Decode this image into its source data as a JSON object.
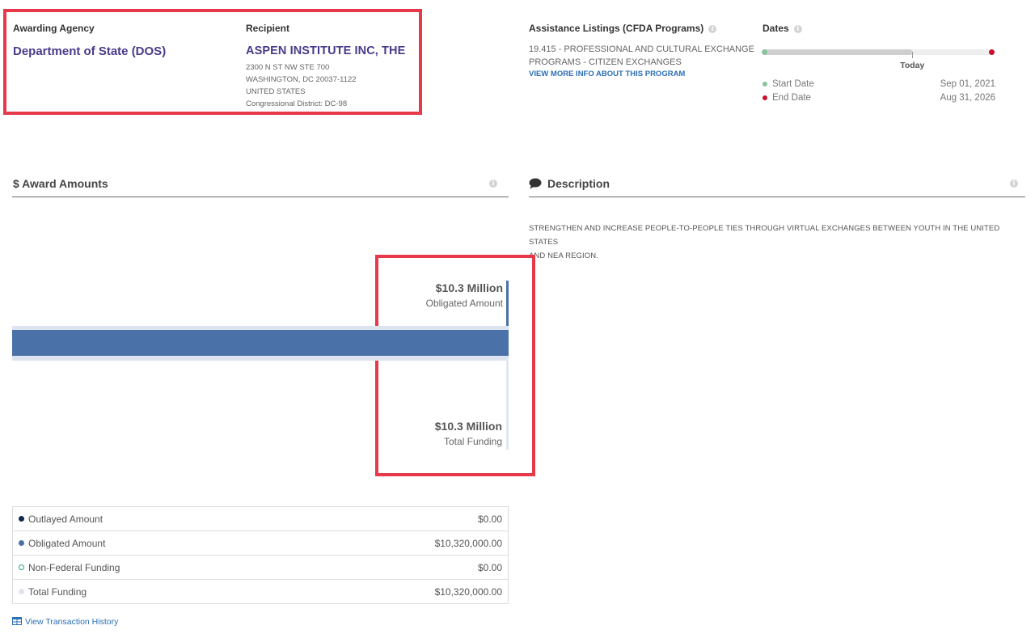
{
  "awarding_agency": {
    "label": "Awarding Agency",
    "name": "Department of State (DOS)"
  },
  "recipient": {
    "label": "Recipient",
    "name": "ASPEN INSTITUTE INC, THE",
    "address_line1": "2300 N ST NW STE 700",
    "address_line2": "WASHINGTON, DC 20037-1122",
    "address_line3": "UNITED STATES",
    "congressional_district": "Congressional District: DC-98"
  },
  "cfda": {
    "label": "Assistance Listings (CFDA Programs)",
    "line1": "19.415 - PROFESSIONAL AND CULTURAL EXCHANGE",
    "line2": "PROGRAMS - CITIZEN EXCHANGES",
    "link": "VIEW MORE INFO ABOUT THIS PROGRAM"
  },
  "dates": {
    "label": "Dates",
    "today_label": "Today",
    "timeline_progress": 0.65,
    "start_label": "Start Date",
    "start_value": "Sep 01, 2021",
    "end_label": "End Date",
    "end_value": "Aug 31, 2026",
    "start_color": "#8bc3a0",
    "end_color": "#c8102e"
  },
  "award_amounts": {
    "title": "$ Award Amounts",
    "obligated_big": "$10.3 Million",
    "obligated_sub": "Obligated Amount",
    "total_big": "$10.3 Million",
    "total_sub": "Total Funding",
    "bar_fill": 1.0,
    "bar_color": "#4a72a8",
    "track_color": "#dde3ef"
  },
  "description": {
    "title": "Description",
    "text_line1": "STRENGTHEN AND INCREASE PEOPLE-TO-PEOPLE TIES THROUGH VIRTUAL EXCHANGES BETWEEN YOUTH IN THE UNITED STATES",
    "text_line2": "AND NEA REGION."
  },
  "legend": [
    {
      "label": "Outlayed Amount",
      "value": "$0.00",
      "color": "#0f2a4a",
      "hollow": false
    },
    {
      "label": "Obligated Amount",
      "value": "$10,320,000.00",
      "color": "#4a72a8",
      "hollow": false
    },
    {
      "label": "Non-Federal Funding",
      "value": "$0.00",
      "color": "#2a9d8f",
      "hollow": true
    },
    {
      "label": "Total Funding",
      "value": "$10,320,000.00",
      "color": "#dde3ef",
      "hollow": false
    }
  ],
  "view_transaction_history": "View Transaction History",
  "icons": {
    "info": "info-icon",
    "description": "speech-bubble-icon",
    "transactions": "table-icon"
  }
}
